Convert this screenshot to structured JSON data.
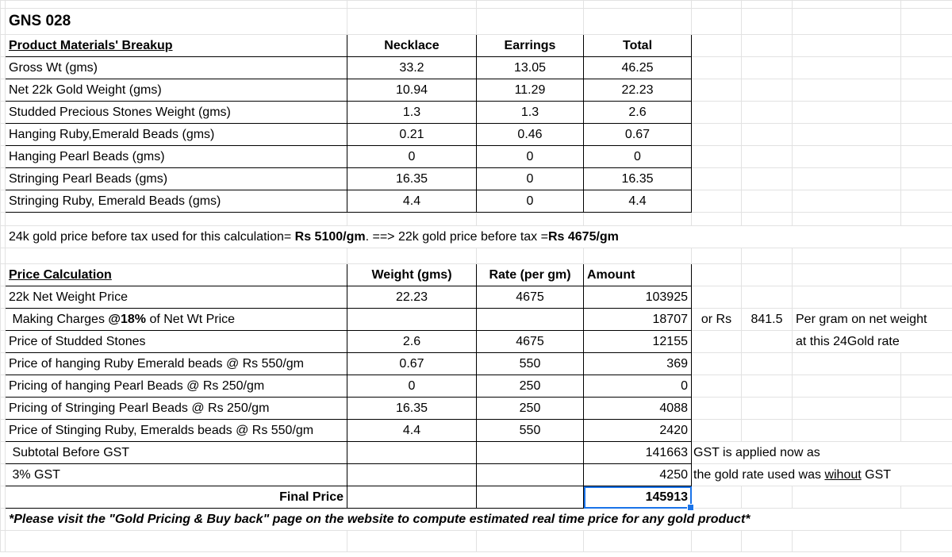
{
  "title": "GNS 028",
  "materials": {
    "headers": [
      "Product Materials' Breakup",
      "Necklace",
      "Earrings",
      "Total"
    ],
    "rows": [
      [
        "Gross Wt (gms)",
        "33.2",
        "13.05",
        "46.25"
      ],
      [
        "Net 22k Gold Weight (gms)",
        "10.94",
        "11.29",
        "22.23"
      ],
      [
        "Studded Precious Stones Weight (gms)",
        "1.3",
        "1.3",
        "2.6"
      ],
      [
        "Hanging Ruby,Emerald Beads (gms)",
        "0.21",
        "0.46",
        "0.67"
      ],
      [
        "Hanging Pearl Beads (gms)",
        "0",
        "0",
        "0"
      ],
      [
        "Stringing Pearl Beads (gms)",
        "16.35",
        "0",
        "16.35"
      ],
      [
        "Stringing Ruby, Emerald Beads (gms)",
        "4.4",
        "0",
        "4.4"
      ]
    ]
  },
  "gold_note": {
    "prefix": "24k gold price before tax used for this calculation= ",
    "rate24": "Rs 5100/gm",
    "middle": ".  ==> 22k gold price before tax =",
    "rate22": "Rs 4675/gm"
  },
  "price": {
    "headers": [
      "Price Calculation",
      "Weight (gms)",
      "Rate (per gm)",
      "Amount"
    ],
    "net_row": [
      "22k Net Weight Price",
      "22.23",
      "4675",
      "103925"
    ],
    "making": {
      "pre": " Making Charges ",
      "bold": "@18%",
      "post": " of Net Wt Price",
      "amount": "18707",
      "or_rs": "or Rs",
      "per_gram": "841.5",
      "note1": "Per gram on net weight",
      "note2": "at this 24Gold rate"
    },
    "rows": [
      [
        "Price of Studded Stones",
        "2.6",
        "4675",
        "12155"
      ],
      [
        "Price of hanging Ruby Emerald beads @ Rs 550/gm",
        "0.67",
        "550",
        "369"
      ],
      [
        "Pricing of hanging Pearl Beads @ Rs 250/gm",
        "0",
        "250",
        "0"
      ],
      [
        "Pricing of Stringing Pearl Beads @ Rs 250/gm",
        "16.35",
        "250",
        "4088"
      ],
      [
        "Price of Stinging Ruby, Emeralds beads @ Rs 550/gm",
        "4.4",
        "550",
        "2420"
      ]
    ],
    "subtotal": {
      "label": " Subtotal Before GST",
      "amount": "141663",
      "note": "GST is applied now as"
    },
    "gst": {
      "label": " 3% GST",
      "amount": "4250",
      "note_pre": "the gold rate used was ",
      "note_u": "wihout",
      "note_post": " GST"
    },
    "final": {
      "label": "Final Price",
      "amount": "145913"
    }
  },
  "footer_note": "*Please visit the \"Gold Pricing & Buy back\" page on the website to compute estimated real time price for any gold product*",
  "colors": {
    "selection": "#1a73e8",
    "gridline": "#e2e2e2"
  }
}
